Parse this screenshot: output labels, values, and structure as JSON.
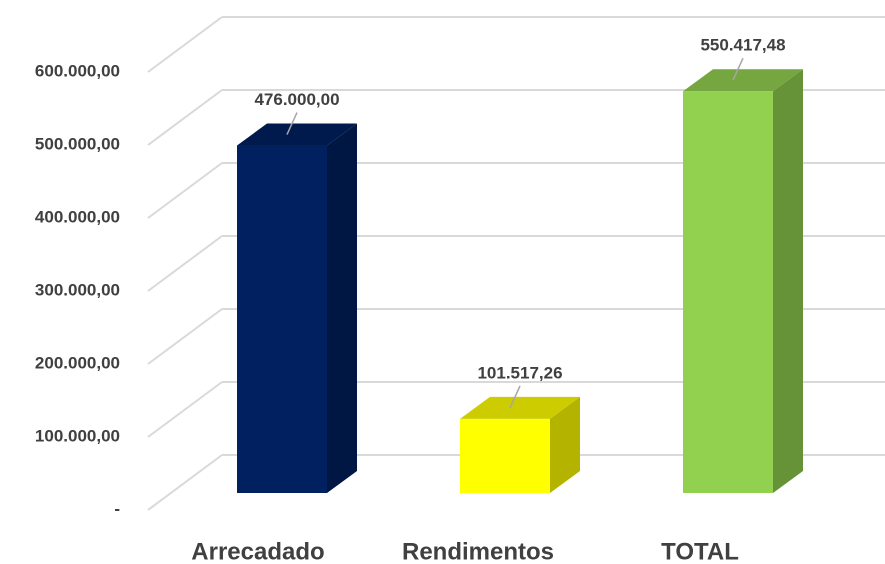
{
  "chart_data": {
    "type": "bar3d",
    "categories": [
      "Arrecadado",
      "Rendimentos",
      "TOTAL"
    ],
    "values": [
      476000,
      101517.26,
      550417.48
    ],
    "value_labels": [
      "476.000,00",
      "101.517,26",
      "550.417,48"
    ],
    "colors": [
      "#002060",
      "#ffff00",
      "#92d050"
    ],
    "ylim": [
      0,
      600000
    ],
    "yticks": [
      {
        "value": 0,
        "label": "-"
      },
      {
        "value": 100000,
        "label": "100.000,00"
      },
      {
        "value": 200000,
        "label": "200.000,00"
      },
      {
        "value": 300000,
        "label": "300.000,00"
      },
      {
        "value": 400000,
        "label": "400.000,00"
      },
      {
        "value": 500000,
        "label": "500.000,00"
      },
      {
        "value": 600000,
        "label": "600.000,00"
      }
    ],
    "grid": true
  }
}
